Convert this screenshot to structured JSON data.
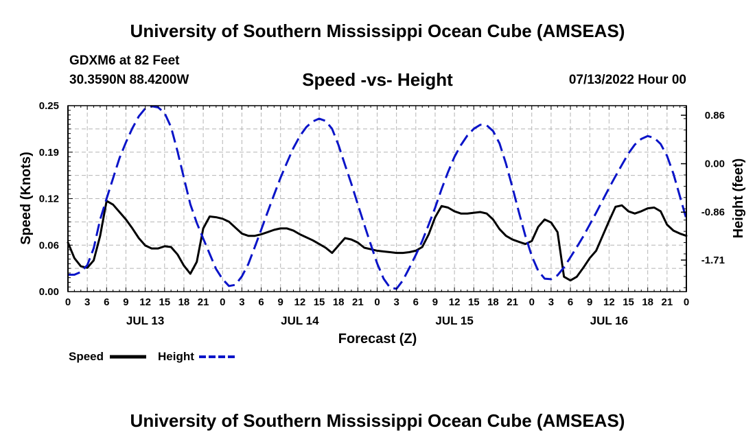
{
  "page": {
    "title": "University of Southern Mississippi Ocean Cube (AMSEAS)",
    "footer_title": "University of Southern Mississippi Ocean Cube (AMSEAS)",
    "station": "GDXM6 at 82 Feet",
    "location": "30.3590N  88.4200W",
    "datetime": "07/13/2022 Hour 00"
  },
  "chart_data": {
    "type": "line",
    "title": "Speed -vs- Height",
    "xlabel": "Forecast (Z)",
    "ylabel": "Speed (Knots)",
    "y2label": "Height (feet)",
    "x_range_hours": [
      0,
      96
    ],
    "ylim": [
      0,
      0.25
    ],
    "y2lim": [
      -2.27,
      1.03
    ],
    "y_ticks": [
      "0.00",
      "0.06",
      "0.12",
      "0.19",
      "0.25"
    ],
    "y_tick_values": [
      0,
      0.0625,
      0.125,
      0.1875,
      0.25
    ],
    "y2_ticks": [
      "0.86",
      "0.00",
      "-0.86",
      "-1.71"
    ],
    "y2_tick_values": [
      0.86,
      0,
      -0.86,
      -1.71
    ],
    "x_ticks": [
      "0",
      "3",
      "6",
      "9",
      "12",
      "15",
      "18",
      "21",
      "0",
      "3",
      "6",
      "9",
      "12",
      "15",
      "18",
      "21",
      "0",
      "3",
      "6",
      "9",
      "12",
      "15",
      "18",
      "21",
      "0",
      "3",
      "6",
      "9",
      "12",
      "15",
      "18",
      "21",
      "0"
    ],
    "day_labels": [
      {
        "label": "JUL 13",
        "hour": 12
      },
      {
        "label": "JUL 14",
        "hour": 36
      },
      {
        "label": "JUL 15",
        "hour": 60
      },
      {
        "label": "JUL 16",
        "hour": 84
      }
    ],
    "grid": true,
    "legend": [
      {
        "name": "Speed",
        "color": "#000000",
        "style": "solid"
      },
      {
        "name": "Height",
        "color": "#0a14c8",
        "style": "dashed"
      }
    ],
    "series": [
      {
        "name": "Speed",
        "axis": "left",
        "color": "#000000",
        "x": [
          0,
          1,
          2,
          3,
          4,
          5,
          6,
          7,
          8,
          9,
          10,
          11,
          12,
          13,
          14,
          15,
          16,
          17,
          18,
          19,
          20,
          21,
          22,
          23,
          24,
          25,
          26,
          27,
          28,
          29,
          30,
          31,
          32,
          33,
          34,
          35,
          36,
          37,
          38,
          39,
          40,
          41,
          42,
          43,
          44,
          45,
          46,
          47,
          48,
          49,
          50,
          51,
          52,
          53,
          54,
          55,
          56,
          57,
          58,
          59,
          60,
          61,
          62,
          63,
          64,
          65,
          66,
          67,
          68,
          69,
          70,
          71,
          72,
          73,
          74,
          75,
          76,
          77,
          78,
          79,
          80,
          81,
          82,
          83,
          84,
          85,
          86,
          87,
          88,
          89,
          90,
          91,
          92,
          93,
          94,
          95,
          96
        ],
        "values": [
          0.066,
          0.045,
          0.034,
          0.032,
          0.042,
          0.075,
          0.122,
          0.117,
          0.107,
          0.097,
          0.085,
          0.072,
          0.062,
          0.058,
          0.058,
          0.061,
          0.06,
          0.05,
          0.035,
          0.024,
          0.04,
          0.085,
          0.101,
          0.1,
          0.098,
          0.094,
          0.086,
          0.078,
          0.075,
          0.075,
          0.077,
          0.08,
          0.083,
          0.085,
          0.085,
          0.082,
          0.077,
          0.073,
          0.069,
          0.064,
          0.059,
          0.052,
          0.062,
          0.072,
          0.07,
          0.066,
          0.059,
          0.057,
          0.055,
          0.054,
          0.053,
          0.052,
          0.052,
          0.053,
          0.055,
          0.06,
          0.077,
          0.1,
          0.115,
          0.113,
          0.108,
          0.105,
          0.105,
          0.106,
          0.107,
          0.105,
          0.097,
          0.084,
          0.075,
          0.07,
          0.067,
          0.064,
          0.068,
          0.087,
          0.097,
          0.093,
          0.08,
          0.02,
          0.015,
          0.02,
          0.032,
          0.045,
          0.055,
          0.075,
          0.095,
          0.114,
          0.116,
          0.108,
          0.105,
          0.108,
          0.112,
          0.113,
          0.108,
          0.09,
          0.082,
          0.078,
          0.075
        ]
      },
      {
        "name": "Height",
        "axis": "right",
        "color": "#0a14c8",
        "x": [
          0,
          1,
          2,
          3,
          4,
          5,
          6,
          7,
          8,
          9,
          10,
          11,
          12,
          13,
          14,
          15,
          16,
          17,
          18,
          19,
          20,
          21,
          22,
          23,
          24,
          25,
          26,
          27,
          28,
          29,
          30,
          31,
          32,
          33,
          34,
          35,
          36,
          37,
          38,
          39,
          40,
          41,
          42,
          43,
          44,
          45,
          46,
          47,
          48,
          49,
          50,
          51,
          52,
          53,
          54,
          55,
          56,
          57,
          58,
          59,
          60,
          61,
          62,
          63,
          64,
          65,
          66,
          67,
          68,
          69,
          70,
          71,
          72,
          73,
          74,
          75,
          76,
          77,
          78,
          79,
          80,
          81,
          82,
          83,
          84,
          85,
          86,
          87,
          88,
          89,
          90,
          91,
          92,
          93,
          94,
          95,
          96
        ],
        "values": [
          -1.97,
          -1.97,
          -1.92,
          -1.8,
          -1.5,
          -0.99,
          -0.62,
          -0.26,
          0.1,
          0.38,
          0.63,
          0.84,
          0.98,
          1.02,
          1.0,
          0.9,
          0.65,
          0.22,
          -0.25,
          -0.72,
          -1.05,
          -1.33,
          -1.6,
          -1.87,
          -2.05,
          -2.17,
          -2.15,
          -2.0,
          -1.78,
          -1.48,
          -1.17,
          -0.86,
          -0.55,
          -0.25,
          0.02,
          0.28,
          0.49,
          0.65,
          0.75,
          0.8,
          0.76,
          0.62,
          0.33,
          -0.02,
          -0.36,
          -0.72,
          -1.08,
          -1.43,
          -1.77,
          -2.04,
          -2.2,
          -2.22,
          -2.07,
          -1.85,
          -1.62,
          -1.37,
          -1.08,
          -0.78,
          -0.45,
          -0.15,
          0.12,
          0.33,
          0.5,
          0.62,
          0.69,
          0.68,
          0.58,
          0.36,
          0.0,
          -0.42,
          -0.86,
          -1.28,
          -1.64,
          -1.9,
          -2.04,
          -2.05,
          -1.98,
          -1.84,
          -1.66,
          -1.48,
          -1.29,
          -1.08,
          -0.87,
          -0.65,
          -0.43,
          -0.22,
          -0.02,
          0.18,
          0.34,
          0.44,
          0.49,
          0.46,
          0.35,
          0.14,
          -0.18,
          -0.58,
          -0.98
        ]
      }
    ]
  }
}
